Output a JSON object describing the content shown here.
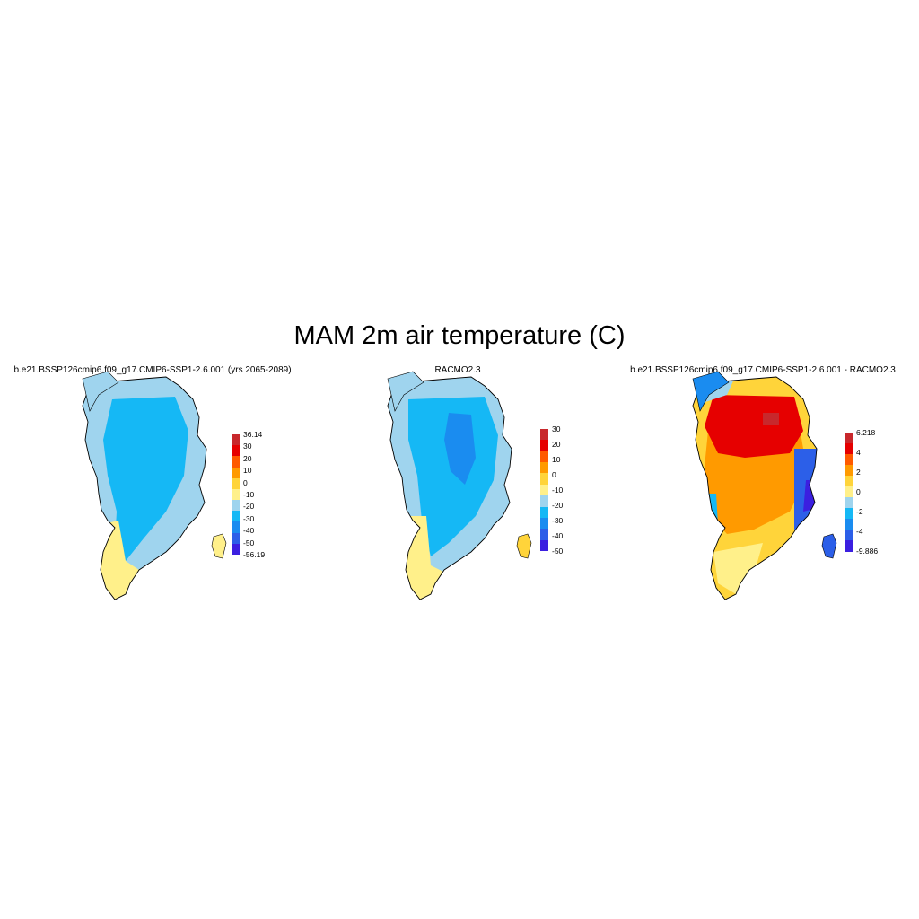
{
  "title": "MAM 2m air temperature (C)",
  "panels": [
    {
      "title": "b.e21.BSSP126cmip6.f09_g17.CMIP6-SSP1-2.6.001 (yrs 2065-2089)",
      "colorbar": {
        "colors": [
          "#3b1fe0",
          "#2c5fe8",
          "#1a8cf0",
          "#15b8f5",
          "#9fd4ee",
          "#fff08a",
          "#ffd43a",
          "#ff9a00",
          "#ff5a00",
          "#e60000",
          "#c8282c"
        ],
        "labels": [
          "36.14",
          "30",
          "20",
          "10",
          "0",
          "-10",
          "-20",
          "-30",
          "-40",
          "-50",
          "-56.19"
        ]
      }
    },
    {
      "title": "RACMO2.3",
      "colorbar": {
        "colors": [
          "#3b1fe0",
          "#2c5fe8",
          "#1a8cf0",
          "#15b8f5",
          "#9fd4ee",
          "#fff08a",
          "#ffd43a",
          "#ff9a00",
          "#ff5a00",
          "#e60000",
          "#c8282c"
        ],
        "labels": [
          "30",
          "20",
          "10",
          "0",
          "-10",
          "-20",
          "-30",
          "-40",
          "-50"
        ]
      }
    },
    {
      "title": "b.e21.BSSP126cmip6.f09_g17.CMIP6-SSP1-2.6.001 - RACMO2.3",
      "colorbar": {
        "colors": [
          "#3b1fe0",
          "#2c5fe8",
          "#1a8cf0",
          "#15b8f5",
          "#9fd4ee",
          "#fff08a",
          "#ffd43a",
          "#ff9a00",
          "#ff5a00",
          "#e60000",
          "#c8282c"
        ],
        "labels": [
          "6.218",
          "4",
          "2",
          "0",
          "-2",
          "-4",
          "-9.886"
        ]
      }
    }
  ]
}
